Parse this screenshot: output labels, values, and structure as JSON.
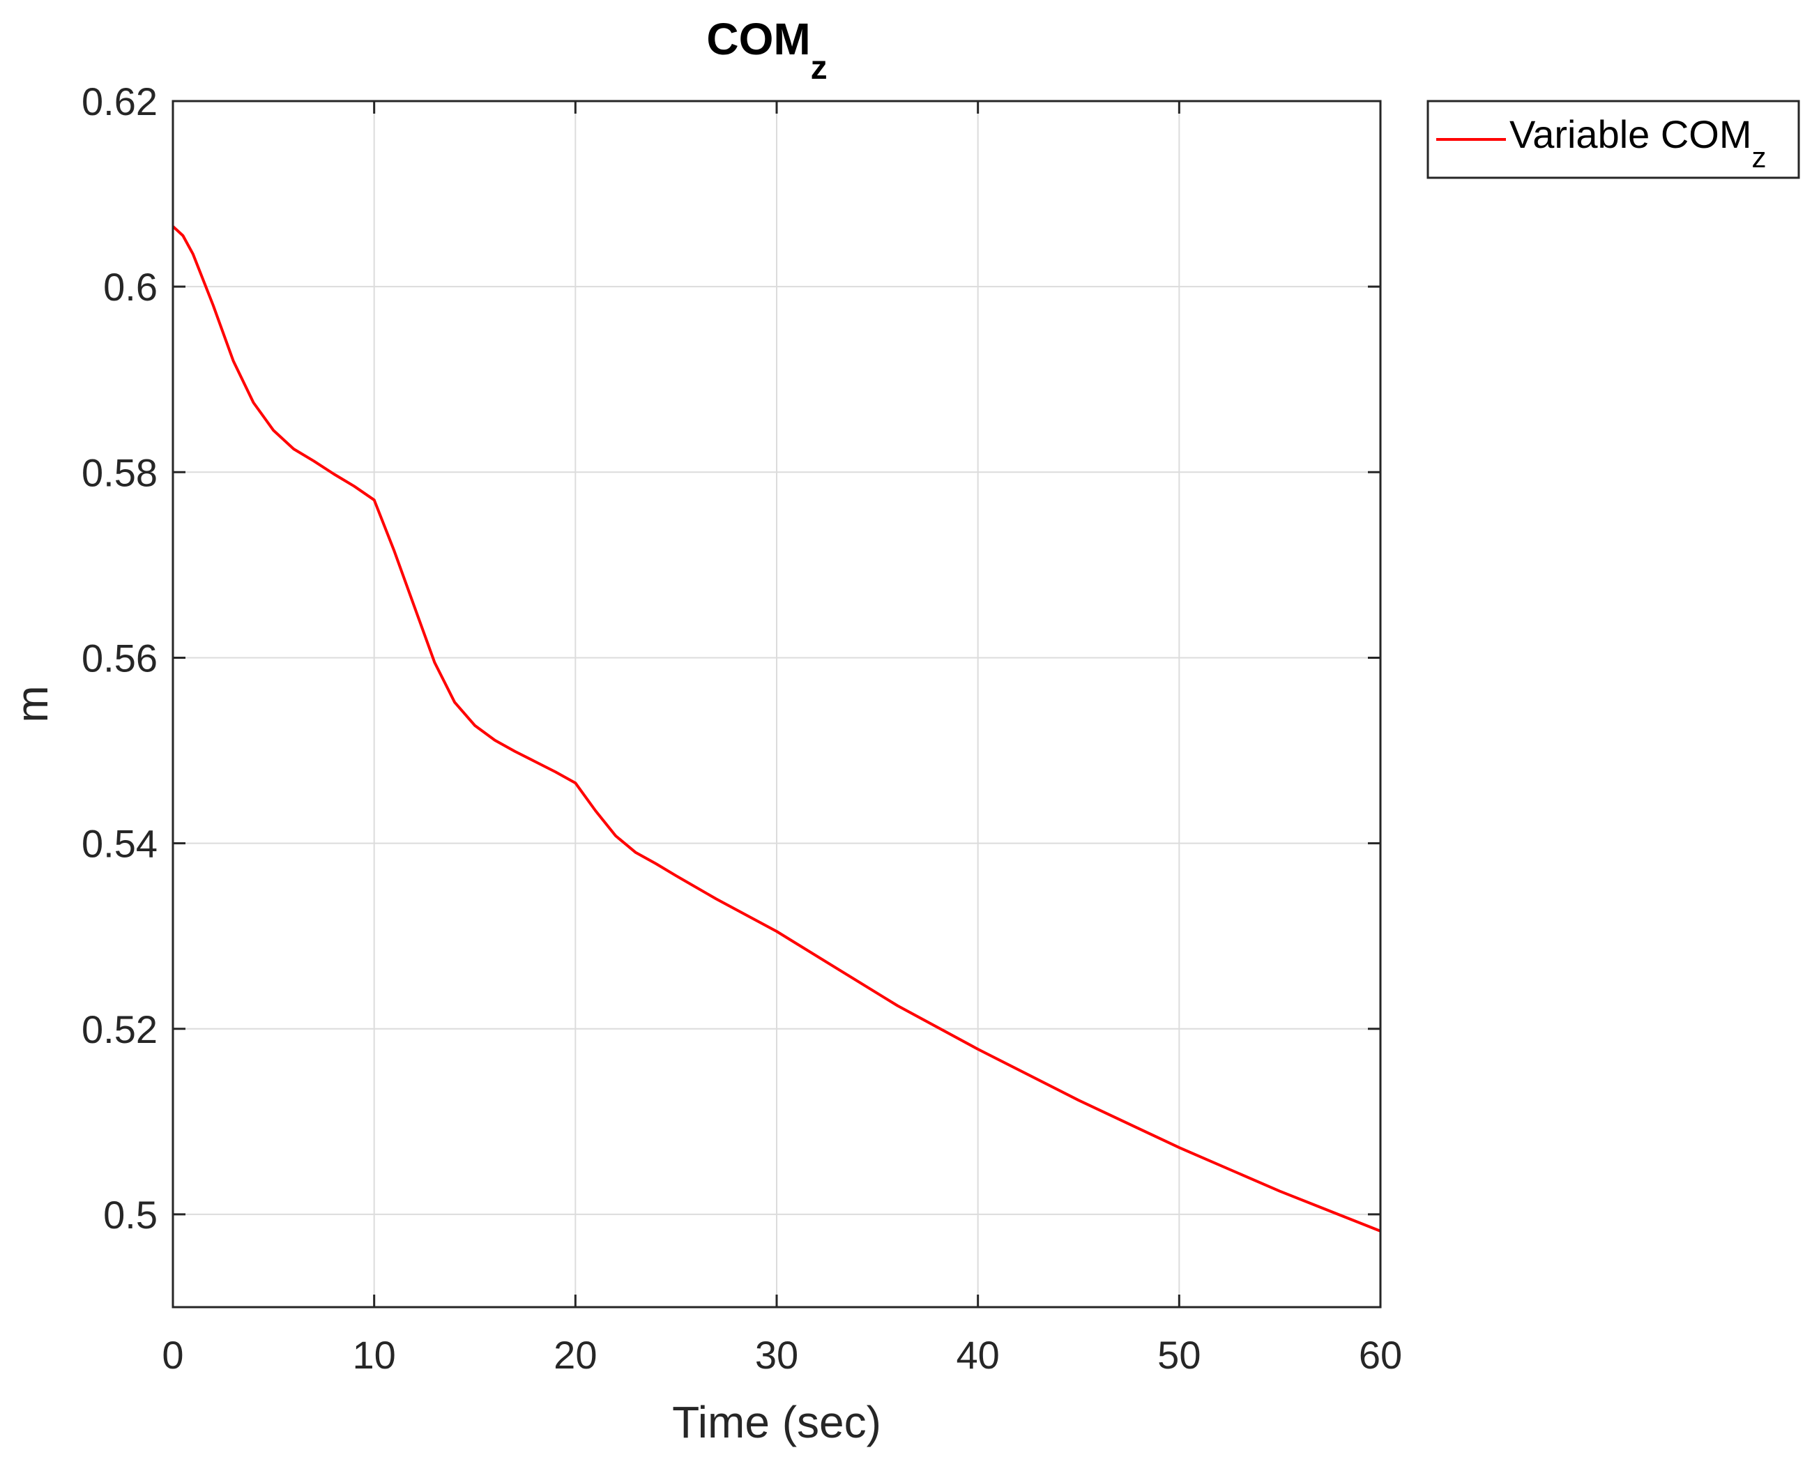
{
  "chart_data": {
    "type": "line",
    "title": "COM",
    "title_subscript": "z",
    "xlabel": "Time (sec)",
    "ylabel": "m",
    "xlim": [
      0,
      60
    ],
    "ylim": [
      0.49,
      0.62
    ],
    "xticks": [
      0,
      10,
      20,
      30,
      40,
      50,
      60
    ],
    "xtick_labels": [
      "0",
      "10",
      "20",
      "30",
      "40",
      "50",
      "60"
    ],
    "yticks": [
      0.5,
      0.52,
      0.54,
      0.56,
      0.58,
      0.6,
      0.62
    ],
    "ytick_labels": [
      "0.5",
      "0.52",
      "0.54",
      "0.56",
      "0.58",
      "0.6",
      "0.62"
    ],
    "grid": true,
    "legend_position": "outside-top-right",
    "series": [
      {
        "name": "Variable COM",
        "name_subscript": "z",
        "color": "#ff0000",
        "x": [
          0,
          0.5,
          1,
          2,
          3,
          4,
          5,
          6,
          7,
          8,
          9,
          10,
          11,
          12,
          13,
          14,
          15,
          16,
          17,
          18,
          19,
          20,
          21,
          22,
          23,
          24,
          25,
          27,
          30,
          33,
          36,
          40,
          45,
          50,
          55,
          60
        ],
        "y": [
          0.6065,
          0.6055,
          0.6035,
          0.598,
          0.592,
          0.5875,
          0.5845,
          0.5825,
          0.5812,
          0.5798,
          0.5785,
          0.577,
          0.5715,
          0.5655,
          0.5595,
          0.5552,
          0.5527,
          0.5511,
          0.5499,
          0.5488,
          0.5477,
          0.5465,
          0.5435,
          0.5408,
          0.539,
          0.5378,
          0.5365,
          0.534,
          0.5305,
          0.5265,
          0.5225,
          0.5178,
          0.5123,
          0.5072,
          0.5025,
          0.4982
        ]
      }
    ]
  }
}
